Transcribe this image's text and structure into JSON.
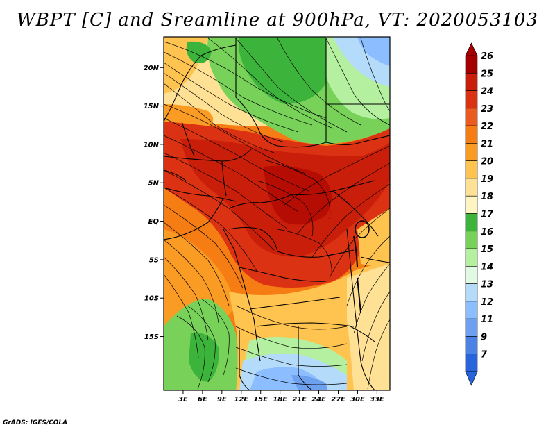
{
  "title": "WBPT [C] and Sreamline at 900hPa, VT: 2020053103",
  "credit": "GrADS: IGES/COLA",
  "map": {
    "lon_range": [
      0,
      35
    ],
    "lat_range": [
      -22,
      24
    ],
    "lon_ticks": [
      {
        "value": 3,
        "label": "3E"
      },
      {
        "value": 6,
        "label": "6E"
      },
      {
        "value": 9,
        "label": "9E"
      },
      {
        "value": 12,
        "label": "12E"
      },
      {
        "value": 15,
        "label": "15E"
      },
      {
        "value": 18,
        "label": "18E"
      },
      {
        "value": 21,
        "label": "21E"
      },
      {
        "value": 24,
        "label": "24E"
      },
      {
        "value": 27,
        "label": "27E"
      },
      {
        "value": 30,
        "label": "30E"
      },
      {
        "value": 33,
        "label": "33E"
      }
    ],
    "lat_ticks": [
      {
        "value": 20,
        "label": "20N"
      },
      {
        "value": 15,
        "label": "15N"
      },
      {
        "value": 10,
        "label": "10N"
      },
      {
        "value": 5,
        "label": "5N"
      },
      {
        "value": 0,
        "label": "EQ"
      },
      {
        "value": -5,
        "label": "5S"
      },
      {
        "value": -10,
        "label": "10S"
      },
      {
        "value": -15,
        "label": "15S"
      }
    ]
  },
  "colorbar": {
    "levels": [
      {
        "label": "26",
        "color": "#a50000"
      },
      {
        "label": "25",
        "color": "#c81e0a"
      },
      {
        "label": "24",
        "color": "#dc3214"
      },
      {
        "label": "23",
        "color": "#eb5a1e"
      },
      {
        "label": "22",
        "color": "#f57d14"
      },
      {
        "label": "21",
        "color": "#fa9b23"
      },
      {
        "label": "20",
        "color": "#ffc350"
      },
      {
        "label": "19",
        "color": "#ffe196"
      },
      {
        "label": "18",
        "color": "#fff5c3"
      },
      {
        "label": "17",
        "color": "#3cb43c"
      },
      {
        "label": "16",
        "color": "#78d25a"
      },
      {
        "label": "15",
        "color": "#b4f0a0"
      },
      {
        "label": "14",
        "color": "#e1fae1"
      },
      {
        "label": "13",
        "color": "#b4dcfa"
      },
      {
        "label": "12",
        "color": "#8cbeff"
      },
      {
        "label": "11",
        "color": "#6ea0f0"
      },
      {
        "label": "9",
        "color": "#4b82e6"
      },
      {
        "label": "7",
        "color": "#2864dc"
      }
    ],
    "bottom_arrow_color": "#2864dc",
    "top_arrow_color": "#a50000"
  }
}
